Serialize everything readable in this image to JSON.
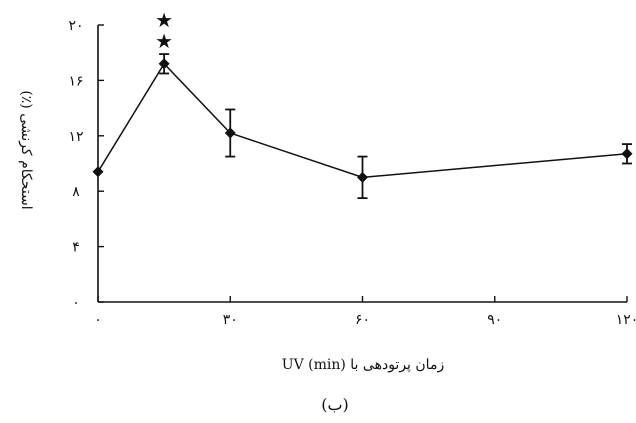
{
  "chart_data": {
    "type": "line",
    "xlabel": "زمان پرتودهی با UV (min)",
    "ylabel": "استحکام کرنشی (٪)",
    "subfigure_label": "(ب)",
    "xlim": [
      0,
      120
    ],
    "ylim": [
      0,
      20
    ],
    "x_ticks": [
      0,
      30,
      60,
      90,
      120
    ],
    "x_tick_labels": [
      "۰",
      "۳۰",
      "۶۰",
      "۹۰",
      "۱۲۰"
    ],
    "y_ticks": [
      0,
      4,
      8,
      12,
      16,
      20
    ],
    "y_tick_labels": [
      "۰",
      "۴",
      "۸",
      "۱۲",
      "۱۶",
      "۲۰"
    ],
    "grid": false,
    "series": [
      {
        "x": [
          0,
          15,
          30,
          60,
          120
        ],
        "y": [
          9.4,
          17.2,
          12.2,
          9.0,
          10.7
        ],
        "error": [
          0,
          0.7,
          1.7,
          1.5,
          0.7
        ],
        "marker": "diamond",
        "color": "#111111"
      }
    ],
    "annotations": [
      {
        "text": "★★",
        "x": 15,
        "note": "significance"
      }
    ]
  }
}
